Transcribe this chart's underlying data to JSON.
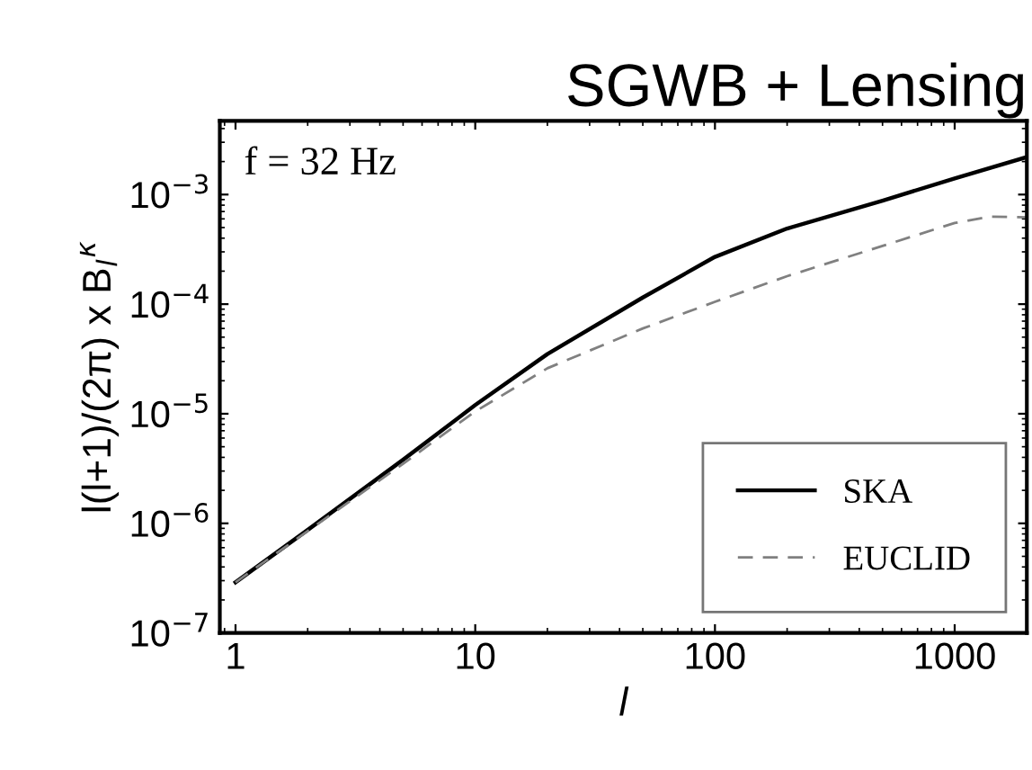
{
  "chart_data": {
    "type": "line",
    "title": "SGWB + Lensing",
    "xlabel": "l",
    "ylabel": "l(l+1)/(2π) x B$_{l}$$^{κ}$",
    "annotations": [
      "f = 32 Hz"
    ],
    "log": "xy",
    "legend": "bottom right",
    "grid": false,
    "xlim": [
      0.86,
      2000
    ],
    "xticks": [
      1,
      10,
      100,
      1000
    ],
    "ylim": [
      1e-07,
      0.0047
    ],
    "yticks": [
      {
        "value": 1e-07,
        "label": "10$^{−7}$"
      },
      {
        "value": 1e-06,
        "label": "10$^{−6}$"
      },
      {
        "value": 1e-05,
        "label": "10$^{−5}$"
      },
      {
        "value": 0.0001,
        "label": "10$^{−4}$"
      },
      {
        "value": 0.001,
        "label": "10$^{−3}$"
      }
    ],
    "series": [
      {
        "name": "SKA",
        "color": "#000000",
        "line_style": "solid",
        "x": [
          1,
          2,
          5,
          10,
          20,
          50,
          100,
          200,
          500,
          1000,
          2000
        ],
        "values": [
          2.9e-07,
          8.7e-07,
          3.8e-06,
          1.2e-05,
          3.5e-05,
          0.000115,
          0.00027,
          0.00049,
          0.00088,
          0.0014,
          0.0022
        ]
      },
      {
        "name": "EUCLID",
        "color": "#808080",
        "line_style": "dashed",
        "x": [
          1,
          2,
          5,
          10,
          20,
          50,
          100,
          200,
          500,
          1000,
          1400,
          2000
        ],
        "values": [
          2.9e-07,
          8.5e-07,
          3.5e-06,
          1.05e-05,
          2.6e-05,
          6e-05,
          0.000105,
          0.00018,
          0.00034,
          0.00055,
          0.00063,
          0.00062
        ]
      }
    ]
  }
}
